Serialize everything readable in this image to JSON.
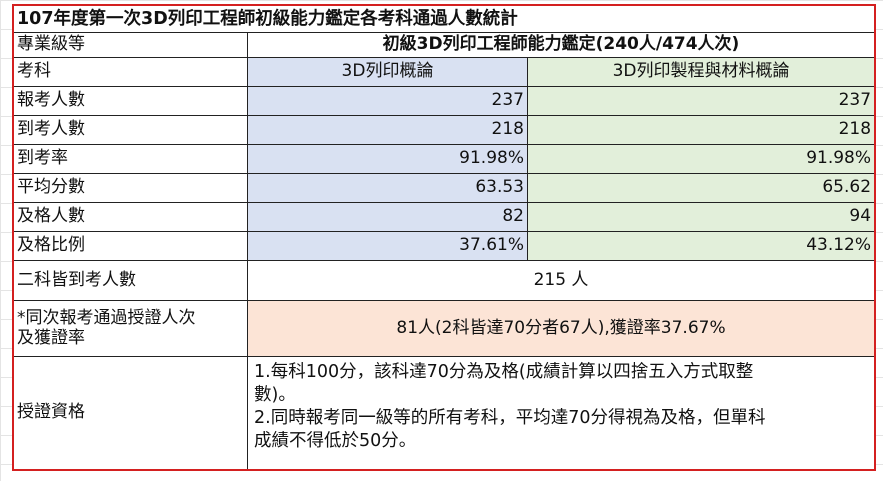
{
  "title": "107年度第一次3D列印工程師初級能力鑑定各考科通過人數統計",
  "header": {
    "level_label": "專業級等",
    "level_value": "初級3D列印工程師能力鑑定(240人/474人次)",
    "subject_label": "考科",
    "subject_1": "3D列印概論",
    "subject_2": "3D列印製程與材料概論"
  },
  "rows": [
    {
      "label": "報考人數",
      "v1": "237",
      "v2": "237"
    },
    {
      "label": "到考人數",
      "v1": "218",
      "v2": "218"
    },
    {
      "label": "到考率",
      "v1": "91.98%",
      "v2": "91.98%"
    },
    {
      "label": "平均分數",
      "v1": "63.53",
      "v2": "65.62"
    },
    {
      "label": "及格人數",
      "v1": "82",
      "v2": "94"
    },
    {
      "label": "及格比例",
      "v1": "37.61%",
      "v2": "43.12%"
    }
  ],
  "both_present": {
    "label": "二科皆到考人數",
    "value": "215 人"
  },
  "certification": {
    "label_line1": "*同次報考通過授證人次",
    "label_line2": "及獲證率",
    "value": "81人(2科皆達70分者67人),獲證率37.67%"
  },
  "requirements": {
    "label": "授證資格",
    "line1": "1.每科100分，該科達70分為及格(成績計算以四捨五入方式取整",
    "line2": "數)。",
    "line3": "2.同時報考同一級等的所有考科，平均達70分得視為及格，但單科",
    "line4": "成績不得低於50分。"
  },
  "colors": {
    "border_highlight": "#d42020",
    "subject1_fill": "#d9e1f2",
    "subject2_fill": "#e2efda",
    "certification_fill": "#fce4d6"
  }
}
